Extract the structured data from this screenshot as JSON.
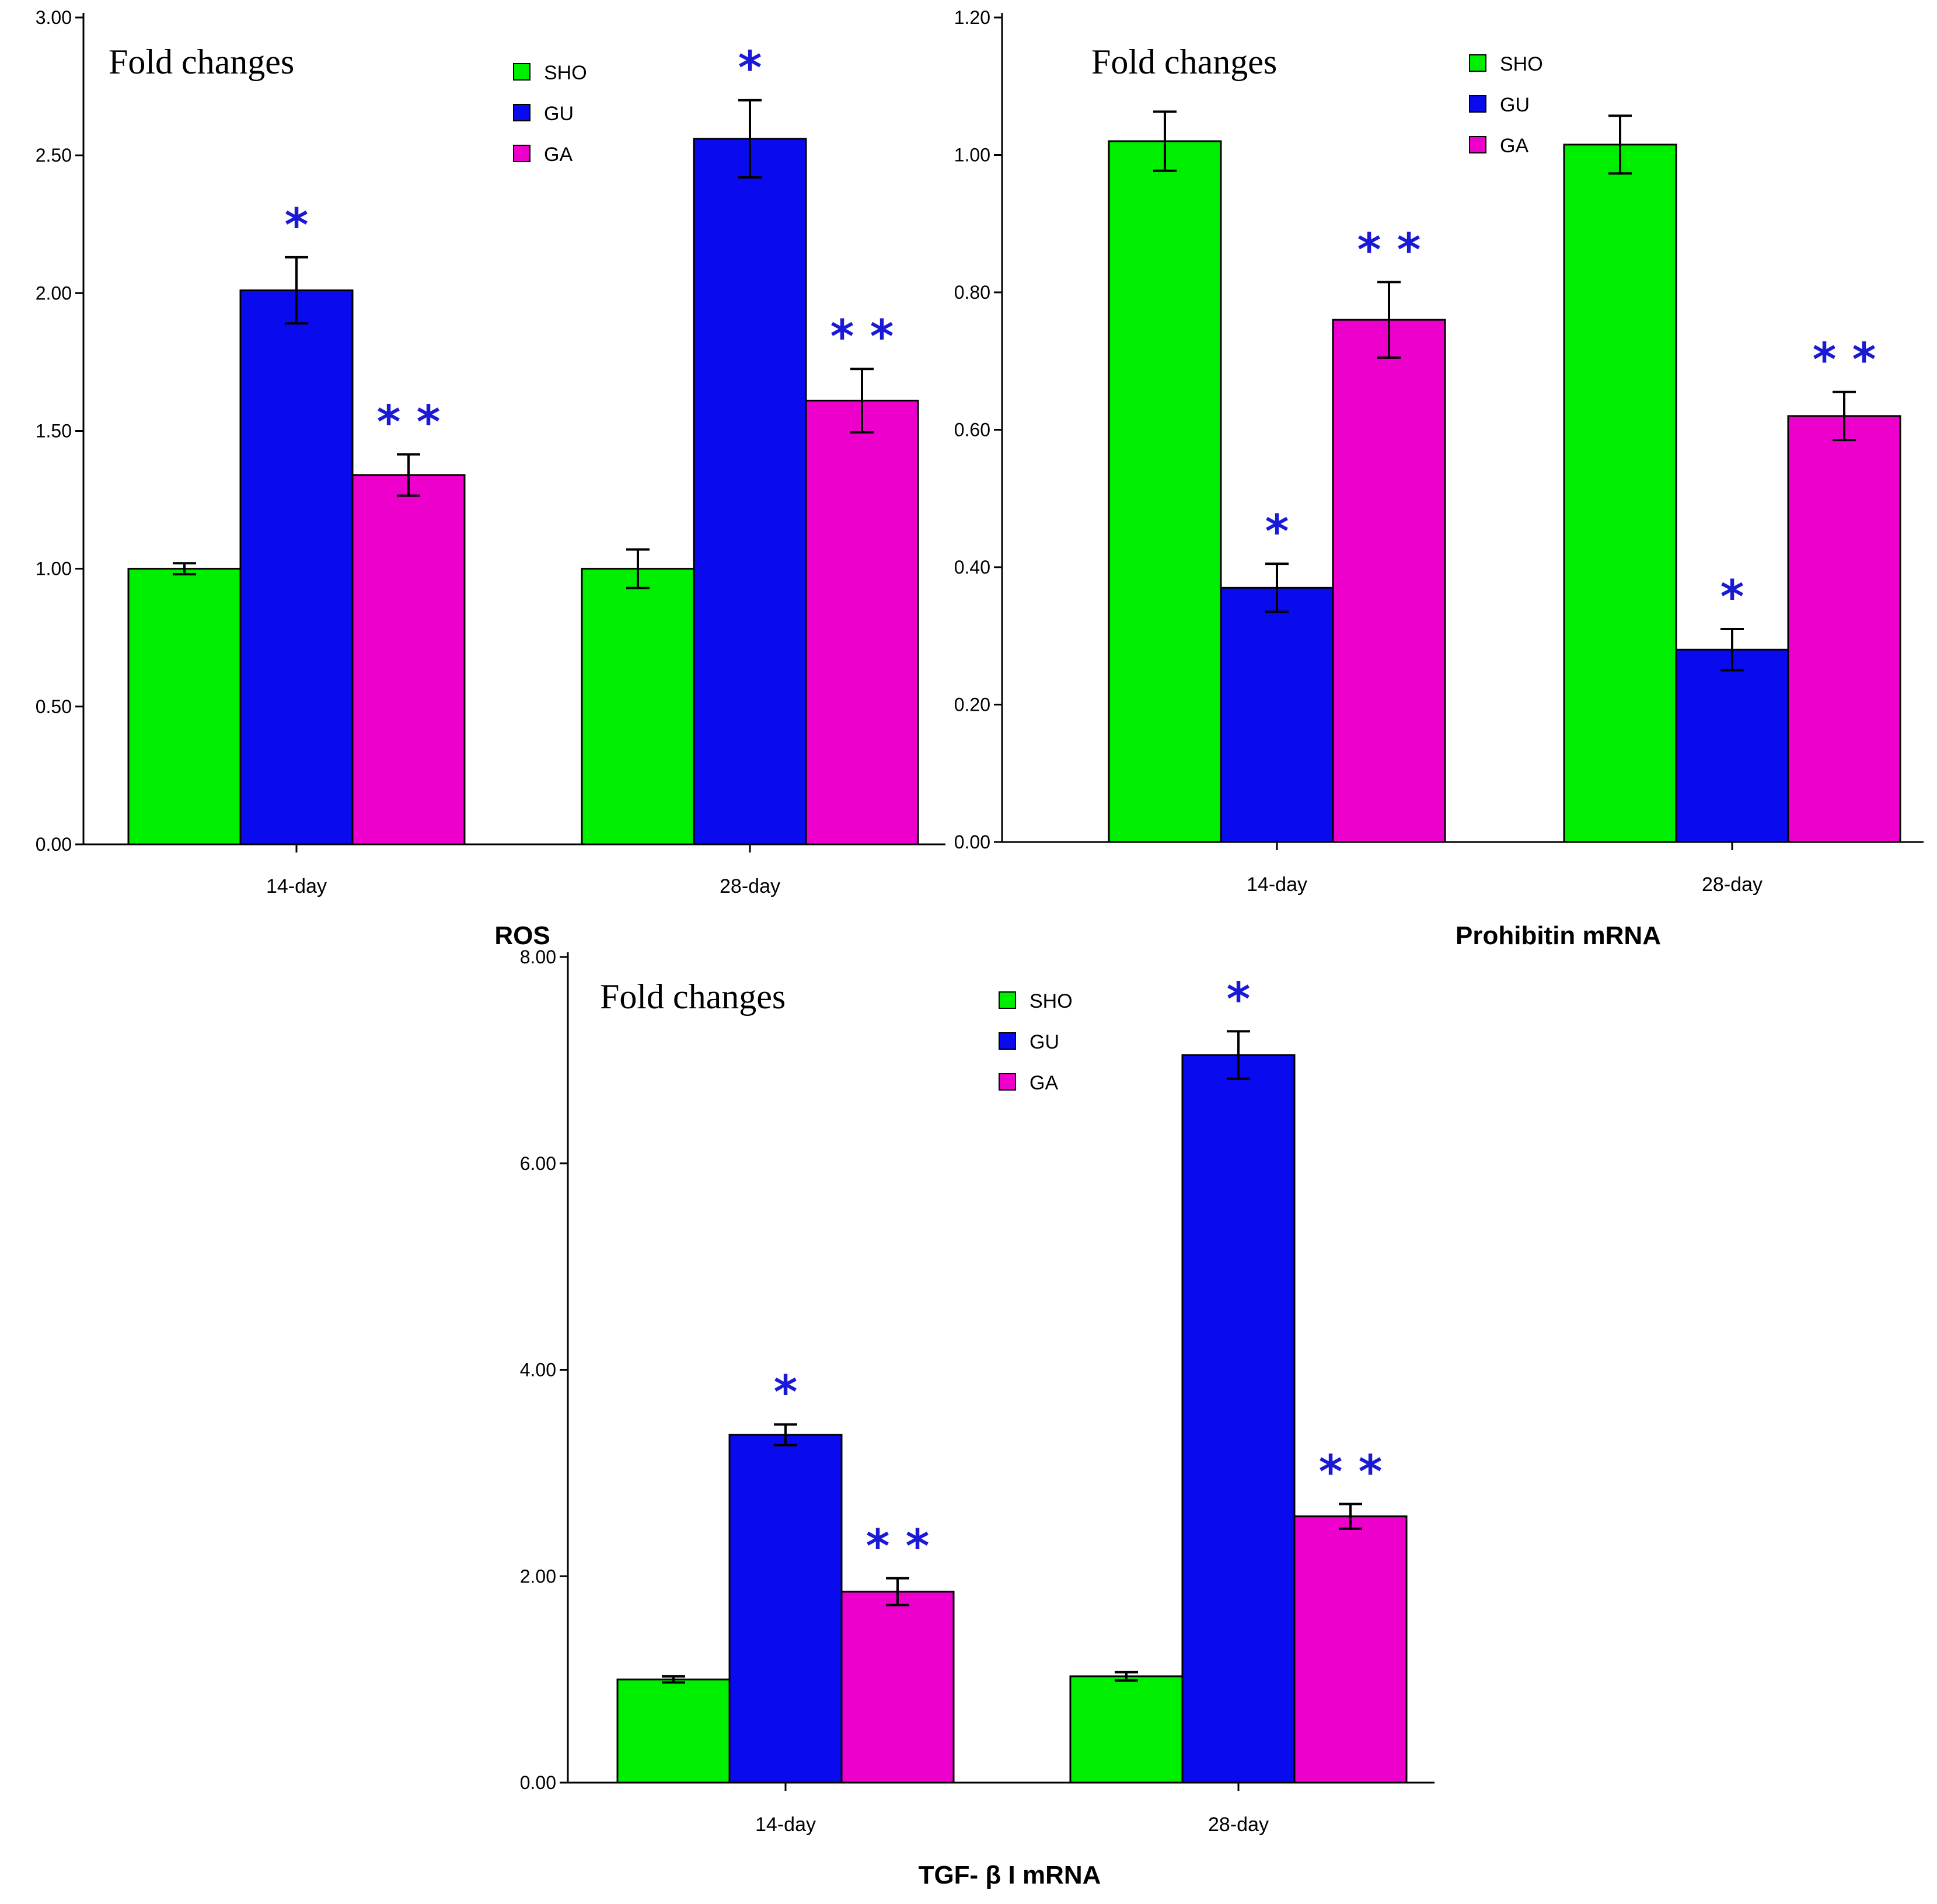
{
  "colors": {
    "SHO": "#00ee00",
    "GU": "#0a0aee",
    "GA": "#ee00cc",
    "significance": "#1a1ad6"
  },
  "chart_data": [
    {
      "type": "bar",
      "title": "",
      "ylabel": "Fold changes",
      "xlabel": "ROS",
      "categories": [
        "14-day",
        "28-day"
      ],
      "ylim": [
        0,
        3.0
      ],
      "yticks": [
        "0.00",
        "0.50",
        "1.00",
        "1.50",
        "2.00",
        "2.50",
        "3.00"
      ],
      "ytick_values": [
        0,
        0.5,
        1.0,
        1.5,
        2.0,
        2.5,
        3.0
      ],
      "legend": [
        "SHO",
        "GU",
        "GA"
      ],
      "series": [
        {
          "name": "SHO",
          "values": [
            1.0,
            1.0
          ],
          "errors": [
            0.02,
            0.07
          ],
          "sig": [
            "",
            ""
          ]
        },
        {
          "name": "GU",
          "values": [
            2.01,
            2.56
          ],
          "errors": [
            0.12,
            0.14
          ],
          "sig": [
            "*",
            "*"
          ]
        },
        {
          "name": "GA",
          "values": [
            1.34,
            1.61
          ],
          "errors": [
            0.075,
            0.115
          ],
          "sig": [
            "**",
            "**"
          ]
        }
      ]
    },
    {
      "type": "bar",
      "title": "",
      "ylabel": "Fold changes",
      "xlabel": "Prohibitin mRNA",
      "categories": [
        "14-day",
        "28-day"
      ],
      "ylim": [
        0,
        1.2
      ],
      "yticks": [
        "0.00",
        "0.20",
        "0.40",
        "0.60",
        "0.80",
        "1.00",
        "1.20"
      ],
      "ytick_values": [
        0,
        0.2,
        0.4,
        0.6,
        0.8,
        1.0,
        1.2
      ],
      "legend": [
        "SHO",
        "GU",
        "GA"
      ],
      "series": [
        {
          "name": "SHO",
          "values": [
            1.02,
            1.015
          ],
          "errors": [
            0.043,
            0.042
          ],
          "sig": [
            "",
            ""
          ]
        },
        {
          "name": "GU",
          "values": [
            0.37,
            0.28
          ],
          "errors": [
            0.035,
            0.03
          ],
          "sig": [
            "*",
            "*"
          ]
        },
        {
          "name": "GA",
          "values": [
            0.76,
            0.62
          ],
          "errors": [
            0.055,
            0.035
          ],
          "sig": [
            "**",
            "**"
          ]
        }
      ]
    },
    {
      "type": "bar",
      "title": "",
      "ylabel": "Fold changes",
      "xlabel": "TGF- β I mRNA",
      "categories": [
        "14-day",
        "28-day"
      ],
      "ylim": [
        0,
        8.0
      ],
      "yticks": [
        "0.00",
        "2.00",
        "4.00",
        "6.00",
        "8.00"
      ],
      "ytick_values": [
        0,
        2.0,
        4.0,
        6.0,
        8.0
      ],
      "legend": [
        "SHO",
        "GU",
        "GA"
      ],
      "series": [
        {
          "name": "SHO",
          "values": [
            1.0,
            1.03
          ],
          "errors": [
            0.03,
            0.04
          ],
          "sig": [
            "",
            ""
          ]
        },
        {
          "name": "GU",
          "values": [
            3.37,
            7.05
          ],
          "errors": [
            0.1,
            0.23
          ],
          "sig": [
            "*",
            "*"
          ]
        },
        {
          "name": "GA",
          "values": [
            1.85,
            2.58
          ],
          "errors": [
            0.13,
            0.12
          ],
          "sig": [
            "**",
            "**"
          ]
        }
      ]
    }
  ]
}
